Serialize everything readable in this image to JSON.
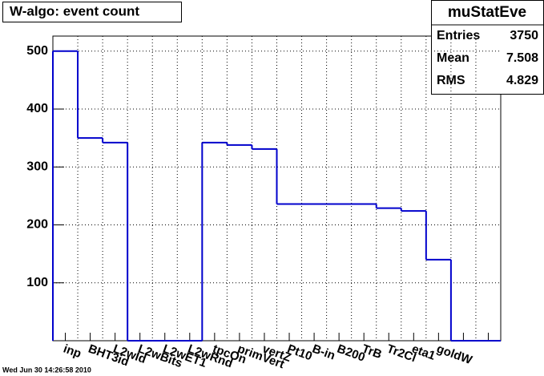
{
  "chart_data": {
    "type": "histogram",
    "title": "W-algo: event count",
    "categories": [
      "inp",
      "BHT3id",
      "L2wId",
      "L2wBits",
      "L2wET1",
      "L2wRnd",
      "tpcOn",
      "primVert",
      "vertZ",
      "Pt10",
      "B-in",
      "B200",
      "TrB",
      "Tr2Cl",
      "eta1",
      "goldW",
      null,
      null
    ],
    "values": [
      500,
      350,
      342,
      0,
      0,
      0,
      342,
      338,
      331,
      236,
      236,
      236,
      236,
      229,
      224,
      140,
      0,
      0
    ],
    "color": "#0000cc",
    "ylim": [
      0,
      526
    ],
    "yticks": [
      100,
      200,
      300,
      400,
      500
    ],
    "grid": true,
    "stats": {
      "name": "muStatEve",
      "rows": [
        {
          "label": "Entries",
          "value": "3750"
        },
        {
          "label": "Mean",
          "value": "7.508"
        },
        {
          "label": "RMS",
          "value": "4.829"
        }
      ]
    },
    "timestamp": "Wed Jun 30 14:26:58 2010"
  }
}
